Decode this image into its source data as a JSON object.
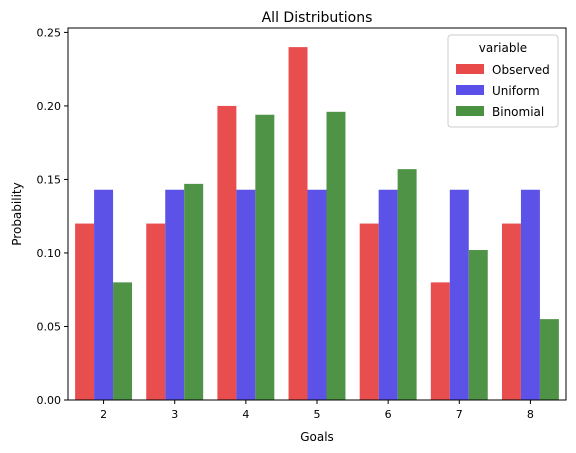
{
  "chart_data": {
    "type": "bar",
    "title": "All Distributions",
    "xlabel": "Goals",
    "ylabel": "Probability",
    "categories": [
      "2",
      "3",
      "4",
      "5",
      "6",
      "7",
      "8"
    ],
    "ylim": [
      0,
      0.253
    ],
    "yticks": [
      0.0,
      0.05,
      0.1,
      0.15,
      0.2,
      0.25
    ],
    "ytick_labels": [
      "0.00",
      "0.05",
      "0.10",
      "0.15",
      "0.20",
      "0.25"
    ],
    "grid": false,
    "legend": {
      "title": "variable",
      "placement": "top-right"
    },
    "series": [
      {
        "name": "Observed",
        "color": "#e84a4a",
        "values": [
          0.12,
          0.12,
          0.2,
          0.24,
          0.12,
          0.08,
          0.12
        ]
      },
      {
        "name": "Uniform",
        "color": "#5a4fe8",
        "values": [
          0.143,
          0.143,
          0.143,
          0.143,
          0.143,
          0.143,
          0.143
        ]
      },
      {
        "name": "Binomial",
        "color": "#4a9142",
        "values": [
          0.08,
          0.147,
          0.194,
          0.196,
          0.157,
          0.102,
          0.055
        ]
      }
    ]
  }
}
